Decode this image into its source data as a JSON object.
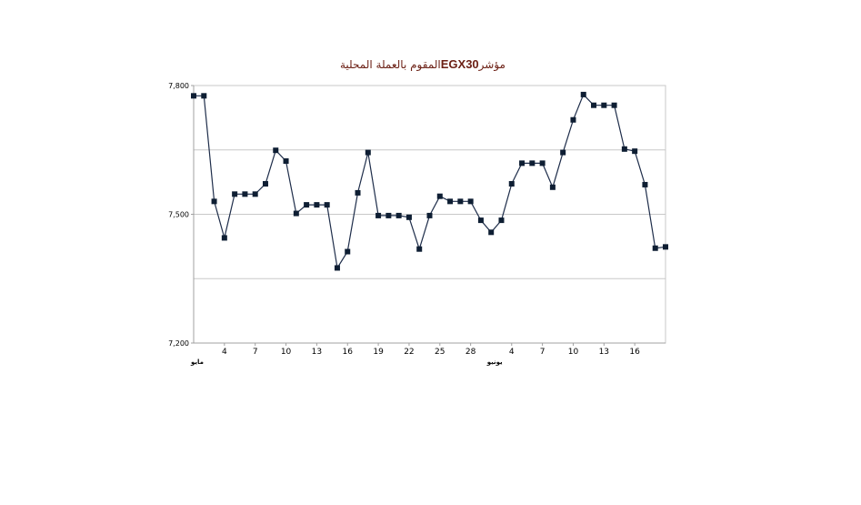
{
  "chart_data": {
    "type": "line",
    "title": {
      "prefix": "مؤشر ",
      "index": "EGX30",
      "suffix": " المقوم بالعملة المحلية"
    },
    "ylim": [
      7200,
      7800
    ],
    "y_ticks": [
      "7,800",
      "7,500",
      "7,200"
    ],
    "gridlines": [
      7800,
      7650,
      7500,
      7350
    ],
    "x_ticks": [
      {
        "i": 3,
        "label": "4"
      },
      {
        "i": 6,
        "label": "7"
      },
      {
        "i": 9,
        "label": "10"
      },
      {
        "i": 12,
        "label": "13"
      },
      {
        "i": 15,
        "label": "16"
      },
      {
        "i": 18,
        "label": "19"
      },
      {
        "i": 21,
        "label": "22"
      },
      {
        "i": 24,
        "label": "25"
      },
      {
        "i": 27,
        "label": "28"
      },
      {
        "i": 31,
        "label": "4"
      },
      {
        "i": 34,
        "label": "7"
      },
      {
        "i": 37,
        "label": "10"
      },
      {
        "i": 40,
        "label": "13"
      },
      {
        "i": 43,
        "label": "16"
      }
    ],
    "month_labels": [
      {
        "i": 0,
        "label": "مايو"
      },
      {
        "i": 29,
        "label": "يونيو"
      }
    ],
    "line_color": "#1e2d4a",
    "marker_color": "#0e1e33",
    "series": [
      {
        "values": [
          7776,
          7776,
          7530,
          7445,
          7547,
          7547,
          7547,
          7571,
          7649,
          7624,
          7502,
          7522,
          7522,
          7522,
          7375,
          7413,
          7550,
          7644,
          7497,
          7497,
          7497,
          7493,
          7419,
          7497,
          7542,
          7530,
          7530,
          7530,
          7486,
          7458,
          7486,
          7571,
          7619,
          7619,
          7619,
          7563,
          7644,
          7720,
          7779,
          7754,
          7754,
          7754,
          7652,
          7647,
          7569,
          7421,
          7424
        ]
      }
    ]
  }
}
